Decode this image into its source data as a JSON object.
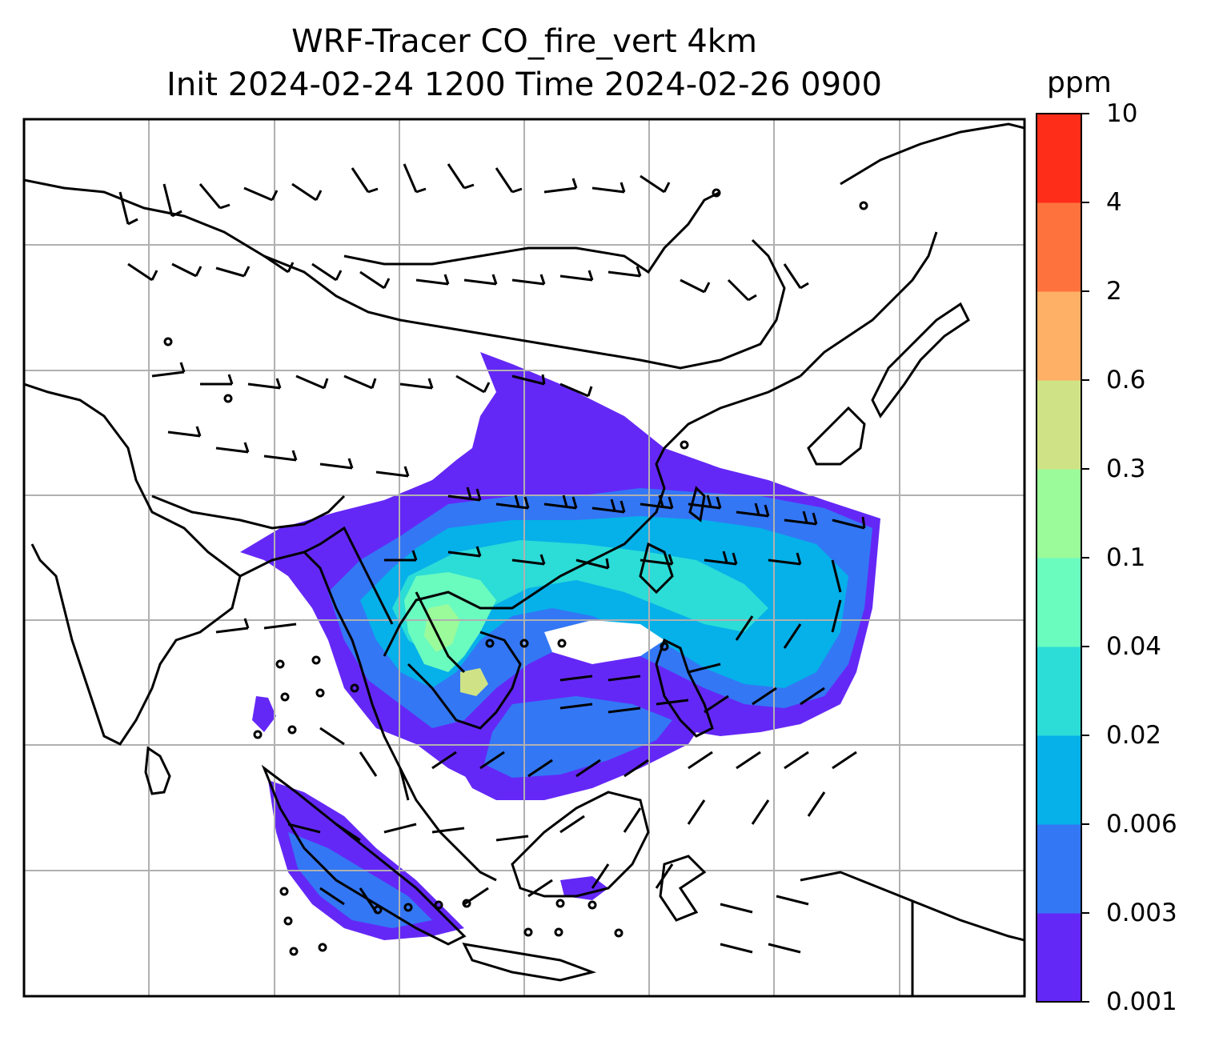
{
  "title": {
    "line1": "WRF-Tracer CO_fire_vert 4km",
    "line2": "Init 2024-02-24 1200 Time 2024-02-26 0900"
  },
  "colorbar": {
    "unit": "ppm",
    "tick_labels": [
      "0.001",
      "0.003",
      "0.006",
      "0.02",
      "0.04",
      "0.1",
      "0.3",
      "0.6",
      "2",
      "4",
      "10"
    ],
    "colors": [
      "#6428f6",
      "#3377f5",
      "#06b0e9",
      "#2bdcd7",
      "#6afbbf",
      "#9bfb9a",
      "#cfe386",
      "#fdb066",
      "#fe733d",
      "#fe2d1a"
    ]
  },
  "map": {
    "variable": "CO_fire_vert",
    "wind_field": "barbs",
    "gridlines": true
  }
}
